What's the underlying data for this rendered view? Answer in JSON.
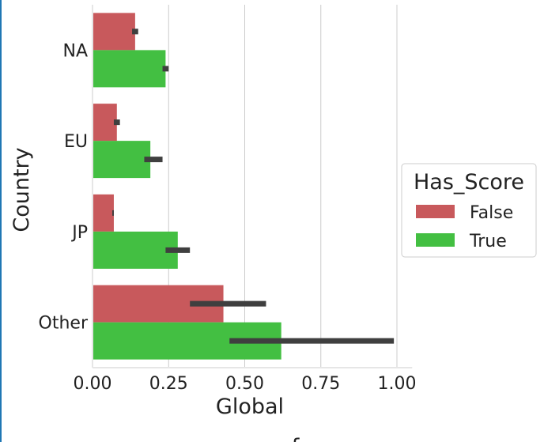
{
  "chart_data": {
    "type": "bar",
    "orientation": "horizontal",
    "categories": [
      "NA",
      "EU",
      "JP",
      "Other"
    ],
    "series": [
      {
        "name": "False",
        "color": "#c8595c",
        "values": [
          0.14,
          0.08,
          0.07,
          0.43
        ],
        "ci": [
          [
            0.13,
            0.15
          ],
          [
            0.07,
            0.09
          ],
          [
            0.065,
            0.07
          ],
          [
            0.32,
            0.57
          ]
        ]
      },
      {
        "name": "True",
        "color": "#43bf42",
        "values": [
          0.24,
          0.19,
          0.28,
          0.62
        ],
        "ci": [
          [
            0.23,
            0.25
          ],
          [
            0.17,
            0.23
          ],
          [
            0.24,
            0.32
          ],
          [
            0.45,
            0.99
          ]
        ]
      }
    ],
    "xlabel": "Global",
    "ylabel": "Country",
    "xlim": [
      0,
      1.05
    ],
    "xticks": [
      "0.00",
      "0.25",
      "0.50",
      "0.75",
      "1.00"
    ],
    "xtick_values": [
      0,
      0.25,
      0.5,
      0.75,
      1.0
    ],
    "grid": "vertical",
    "legend": {
      "title": "Has_Score",
      "placement": "right"
    },
    "clipped_bottom_text": "...f"
  }
}
